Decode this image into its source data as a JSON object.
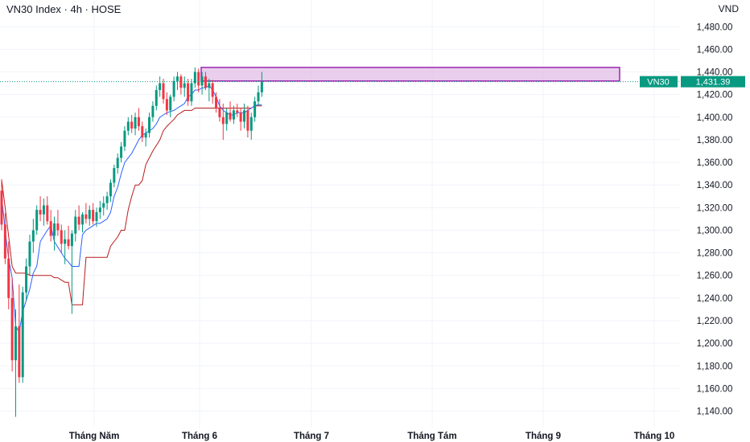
{
  "header": {
    "title": "VN30 Index · 4h · HOSE",
    "currency": "VND"
  },
  "price_tag": {
    "label": "VN30",
    "value": "1,431.39"
  },
  "colors": {
    "up": "#089981",
    "down": "#f23645",
    "fast_line": "#2962ff",
    "slow_line": "#b71c1c",
    "zone_fill": "#e1bee7",
    "zone_border": "#9c27b0"
  },
  "chart_data": {
    "type": "candlestick",
    "title": "VN30 Index · 4h · HOSE",
    "ylabel": "VND",
    "ylim": [
      1130,
      1495
    ],
    "y_ticks": [
      "1,140.00",
      "1,160.00",
      "1,180.00",
      "1,200.00",
      "1,220.00",
      "1,240.00",
      "1,260.00",
      "1,280.00",
      "1,300.00",
      "1,320.00",
      "1,340.00",
      "1,360.00",
      "1,380.00",
      "1,400.00",
      "1,420.00",
      "1,440.00",
      "1,460.00",
      "1,480.00"
    ],
    "x_ticks": [
      "Tháng Năm",
      "Tháng 6",
      "Tháng 7",
      "Tháng Tám",
      "Tháng 9",
      "Tháng 10"
    ],
    "last_price": 1431.39,
    "zone": {
      "low": 1432,
      "high": 1444
    },
    "candles": [
      {
        "o": 1335,
        "h": 1345,
        "l": 1300,
        "c": 1305
      },
      {
        "o": 1305,
        "h": 1315,
        "l": 1270,
        "c": 1275
      },
      {
        "o": 1275,
        "h": 1290,
        "l": 1230,
        "c": 1240
      },
      {
        "o": 1240,
        "h": 1258,
        "l": 1175,
        "c": 1185
      },
      {
        "o": 1185,
        "h": 1230,
        "l": 1135,
        "c": 1215
      },
      {
        "o": 1215,
        "h": 1252,
        "l": 1165,
        "c": 1170
      },
      {
        "o": 1170,
        "h": 1250,
        "l": 1165,
        "c": 1245
      },
      {
        "o": 1245,
        "h": 1275,
        "l": 1238,
        "c": 1268
      },
      {
        "o": 1268,
        "h": 1296,
        "l": 1260,
        "c": 1290
      },
      {
        "o": 1290,
        "h": 1310,
        "l": 1280,
        "c": 1300
      },
      {
        "o": 1300,
        "h": 1322,
        "l": 1296,
        "c": 1318
      },
      {
        "o": 1318,
        "h": 1330,
        "l": 1308,
        "c": 1314
      },
      {
        "o": 1314,
        "h": 1328,
        "l": 1304,
        "c": 1322
      },
      {
        "o": 1322,
        "h": 1330,
        "l": 1305,
        "c": 1308
      },
      {
        "o": 1308,
        "h": 1318,
        "l": 1290,
        "c": 1295
      },
      {
        "o": 1295,
        "h": 1312,
        "l": 1282,
        "c": 1306
      },
      {
        "o": 1306,
        "h": 1318,
        "l": 1295,
        "c": 1300
      },
      {
        "o": 1300,
        "h": 1305,
        "l": 1280,
        "c": 1288
      },
      {
        "o": 1288,
        "h": 1300,
        "l": 1270,
        "c": 1292
      },
      {
        "o": 1292,
        "h": 1304,
        "l": 1283,
        "c": 1286
      },
      {
        "o": 1286,
        "h": 1300,
        "l": 1226,
        "c": 1297
      },
      {
        "o": 1297,
        "h": 1318,
        "l": 1290,
        "c": 1312
      },
      {
        "o": 1312,
        "h": 1322,
        "l": 1300,
        "c": 1305
      },
      {
        "o": 1305,
        "h": 1316,
        "l": 1298,
        "c": 1314
      },
      {
        "o": 1314,
        "h": 1324,
        "l": 1306,
        "c": 1310
      },
      {
        "o": 1310,
        "h": 1322,
        "l": 1304,
        "c": 1318
      },
      {
        "o": 1318,
        "h": 1324,
        "l": 1305,
        "c": 1308
      },
      {
        "o": 1308,
        "h": 1320,
        "l": 1303,
        "c": 1316
      },
      {
        "o": 1316,
        "h": 1326,
        "l": 1310,
        "c": 1320
      },
      {
        "o": 1320,
        "h": 1330,
        "l": 1313,
        "c": 1324
      },
      {
        "o": 1324,
        "h": 1334,
        "l": 1318,
        "c": 1330
      },
      {
        "o": 1330,
        "h": 1345,
        "l": 1325,
        "c": 1342
      },
      {
        "o": 1342,
        "h": 1358,
        "l": 1338,
        "c": 1355
      },
      {
        "o": 1355,
        "h": 1368,
        "l": 1350,
        "c": 1364
      },
      {
        "o": 1364,
        "h": 1378,
        "l": 1360,
        "c": 1374
      },
      {
        "o": 1374,
        "h": 1392,
        "l": 1370,
        "c": 1388
      },
      {
        "o": 1388,
        "h": 1400,
        "l": 1384,
        "c": 1396
      },
      {
        "o": 1396,
        "h": 1402,
        "l": 1386,
        "c": 1390
      },
      {
        "o": 1390,
        "h": 1404,
        "l": 1384,
        "c": 1400
      },
      {
        "o": 1400,
        "h": 1408,
        "l": 1388,
        "c": 1392
      },
      {
        "o": 1392,
        "h": 1396,
        "l": 1378,
        "c": 1382
      },
      {
        "o": 1382,
        "h": 1390,
        "l": 1374,
        "c": 1386
      },
      {
        "o": 1386,
        "h": 1404,
        "l": 1382,
        "c": 1400
      },
      {
        "o": 1400,
        "h": 1414,
        "l": 1396,
        "c": 1410
      },
      {
        "o": 1410,
        "h": 1428,
        "l": 1406,
        "c": 1424
      },
      {
        "o": 1424,
        "h": 1436,
        "l": 1418,
        "c": 1430
      },
      {
        "o": 1430,
        "h": 1434,
        "l": 1412,
        "c": 1416
      },
      {
        "o": 1416,
        "h": 1422,
        "l": 1402,
        "c": 1406
      },
      {
        "o": 1406,
        "h": 1420,
        "l": 1400,
        "c": 1418
      },
      {
        "o": 1418,
        "h": 1436,
        "l": 1414,
        "c": 1432
      },
      {
        "o": 1432,
        "h": 1440,
        "l": 1424,
        "c": 1436
      },
      {
        "o": 1436,
        "h": 1438,
        "l": 1420,
        "c": 1426
      },
      {
        "o": 1426,
        "h": 1436,
        "l": 1418,
        "c": 1430
      },
      {
        "o": 1430,
        "h": 1434,
        "l": 1410,
        "c": 1414
      },
      {
        "o": 1414,
        "h": 1434,
        "l": 1410,
        "c": 1430
      },
      {
        "o": 1430,
        "h": 1444,
        "l": 1426,
        "c": 1440
      },
      {
        "o": 1440,
        "h": 1443,
        "l": 1422,
        "c": 1428
      },
      {
        "o": 1428,
        "h": 1440,
        "l": 1420,
        "c": 1436
      },
      {
        "o": 1436,
        "h": 1440,
        "l": 1424,
        "c": 1426
      },
      {
        "o": 1426,
        "h": 1434,
        "l": 1414,
        "c": 1430
      },
      {
        "o": 1430,
        "h": 1433,
        "l": 1412,
        "c": 1418
      },
      {
        "o": 1418,
        "h": 1422,
        "l": 1404,
        "c": 1408
      },
      {
        "o": 1408,
        "h": 1416,
        "l": 1396,
        "c": 1400
      },
      {
        "o": 1400,
        "h": 1412,
        "l": 1380,
        "c": 1394
      },
      {
        "o": 1394,
        "h": 1408,
        "l": 1388,
        "c": 1404
      },
      {
        "o": 1404,
        "h": 1414,
        "l": 1396,
        "c": 1398
      },
      {
        "o": 1398,
        "h": 1410,
        "l": 1394,
        "c": 1406
      },
      {
        "o": 1406,
        "h": 1412,
        "l": 1400,
        "c": 1404
      },
      {
        "o": 1404,
        "h": 1408,
        "l": 1388,
        "c": 1396
      },
      {
        "o": 1396,
        "h": 1412,
        "l": 1390,
        "c": 1406
      },
      {
        "o": 1406,
        "h": 1410,
        "l": 1382,
        "c": 1388
      },
      {
        "o": 1388,
        "h": 1404,
        "l": 1380,
        "c": 1400
      },
      {
        "o": 1400,
        "h": 1418,
        "l": 1396,
        "c": 1414
      },
      {
        "o": 1414,
        "h": 1428,
        "l": 1410,
        "c": 1422
      },
      {
        "o": 1422,
        "h": 1440,
        "l": 1418,
        "c": 1431.39
      }
    ],
    "fast_line": [
      1330,
      1300,
      1275,
      1258,
      1215,
      1210,
      1228,
      1238,
      1248,
      1262,
      1268,
      1290,
      1295,
      1300,
      1304,
      1290,
      1285,
      1280,
      1275,
      1272,
      1268,
      1268,
      1268,
      1296,
      1300,
      1302,
      1304,
      1306,
      1306,
      1308,
      1310,
      1316,
      1330,
      1338,
      1350,
      1360,
      1364,
      1368,
      1374,
      1380,
      1384,
      1386,
      1388,
      1390,
      1394,
      1400,
      1402,
      1404,
      1405,
      1406,
      1408,
      1410,
      1412,
      1418,
      1420,
      1424,
      1424,
      1426,
      1426,
      1428,
      1424,
      1418,
      1410,
      1406,
      1404,
      1402,
      1402,
      1404,
      1404,
      1404,
      1406,
      1408,
      1410,
      1411,
      1411
    ],
    "slow_line": [
      1345,
      1320,
      1295,
      1268,
      1262,
      1262,
      1262,
      1262,
      1260,
      1260,
      1260,
      1260,
      1260,
      1260,
      1260,
      1258,
      1258,
      1256,
      1254,
      1254,
      1234,
      1234,
      1234,
      1234,
      1276,
      1276,
      1276,
      1276,
      1276,
      1276,
      1276,
      1286,
      1290,
      1294,
      1300,
      1300,
      1318,
      1330,
      1340,
      1340,
      1344,
      1358,
      1364,
      1370,
      1375,
      1380,
      1388,
      1392,
      1395,
      1398,
      1402,
      1404,
      1406,
      1406,
      1406,
      1408,
      1408,
      1408,
      1408,
      1408,
      1408,
      1408,
      1408,
      1408,
      1408,
      1408,
      1408,
      1408,
      1408,
      1408,
      1408,
      1408,
      1410,
      1410,
      1410
    ]
  }
}
